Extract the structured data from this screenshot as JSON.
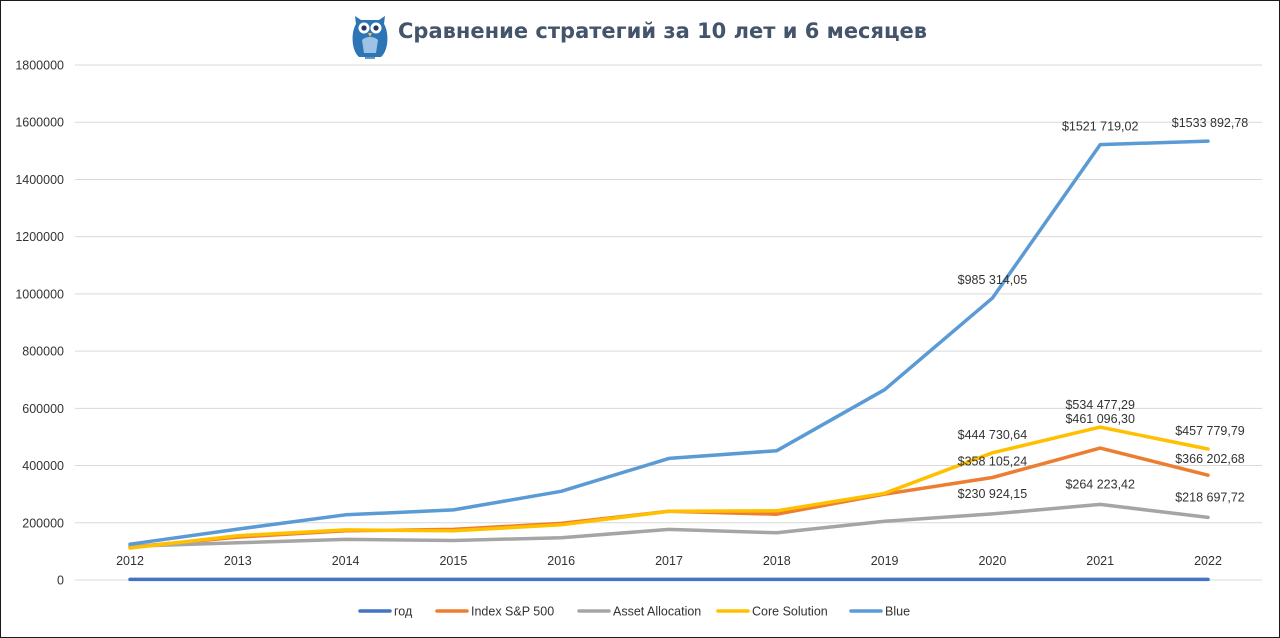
{
  "chart_data": {
    "type": "line",
    "title": "Сравнение стратегий за 10 лет и 6 месяцев",
    "logo": "owl-logo",
    "xlabel": "",
    "ylabel": "",
    "ylim": [
      0,
      1800000
    ],
    "yticks": [
      0,
      200000,
      400000,
      600000,
      800000,
      1000000,
      1200000,
      1400000,
      1600000,
      1800000
    ],
    "ytick_labels": [
      "0",
      "200000",
      "400000",
      "600000",
      "800000",
      "1000000",
      "1200000",
      "1400000",
      "1600000",
      "1800000"
    ],
    "grid": true,
    "legend_position": "bottom",
    "categories": [
      "2012",
      "2013",
      "2014",
      "2015",
      "2016",
      "2017",
      "2018",
      "2019",
      "2020",
      "2021",
      "2022"
    ],
    "series": [
      {
        "name": "год",
        "color": "#4472c4",
        "values": [
          2012,
          2013,
          2014,
          2015,
          2016,
          2017,
          2018,
          2019,
          2020,
          2021,
          2022
        ]
      },
      {
        "name": "Index S&P 500",
        "color": "#ed7d31",
        "values": [
          115000,
          150000,
          172000,
          177000,
          198000,
          240000,
          230000,
          300000,
          358105.24,
          461096.3,
          366202.68
        ]
      },
      {
        "name": "Asset Allocation",
        "color": "#a5a5a5",
        "values": [
          118000,
          130000,
          142000,
          138000,
          148000,
          177000,
          165000,
          205000,
          230924.15,
          264223.42,
          218697.72
        ]
      },
      {
        "name": "Core Solution",
        "color": "#ffc000",
        "values": [
          112000,
          155000,
          175000,
          172000,
          193000,
          240000,
          242000,
          303000,
          444730.64,
          534477.29,
          457779.79
        ]
      },
      {
        "name": "Blue",
        "color": "#5b9bd5",
        "values": [
          125000,
          178000,
          228000,
          245000,
          310000,
          425000,
          452000,
          665000,
          985314.05,
          1521719.02,
          1533892.78
        ]
      }
    ],
    "annotations": [
      {
        "series": "Blue",
        "category": "2020",
        "text": "$985 314,05"
      },
      {
        "series": "Blue",
        "category": "2021",
        "text": "$1521 719,02"
      },
      {
        "series": "Blue",
        "category": "2022",
        "text": "$1533 892,78"
      },
      {
        "series": "Core Solution",
        "category": "2020",
        "text": "$444 730,64"
      },
      {
        "series": "Core Solution",
        "category": "2021",
        "text": "$534 477,29"
      },
      {
        "series": "Core Solution",
        "category": "2022",
        "text": "$457 779,79"
      },
      {
        "series": "Index S&P 500",
        "category": "2020",
        "text": "$358 105,24"
      },
      {
        "series": "Index S&P 500",
        "category": "2021",
        "text": "$461 096,30"
      },
      {
        "series": "Index S&P 500",
        "category": "2022",
        "text": "$366 202,68"
      },
      {
        "series": "Asset Allocation",
        "category": "2020",
        "text": "$230 924,15"
      },
      {
        "series": "Asset Allocation",
        "category": "2021",
        "text": "$264 223,42"
      },
      {
        "series": "Asset Allocation",
        "category": "2022",
        "text": "$218 697,72"
      }
    ]
  }
}
